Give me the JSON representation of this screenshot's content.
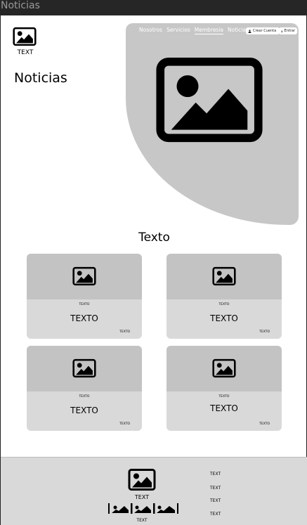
{
  "window": {
    "title": "Noticias"
  },
  "header": {
    "logo_text": "TEXT",
    "page_title": "Noticias",
    "nav": [
      {
        "label": "Nosotros"
      },
      {
        "label": "Servicios"
      },
      {
        "label": "Membresia",
        "active": true
      },
      {
        "label": "Noticias"
      }
    ],
    "create_account": "Crear Cuenta",
    "login": "Entrar"
  },
  "section": {
    "title": "Texto"
  },
  "cards": [
    {
      "small": "TEXTO",
      "title": "TEXTO",
      "corner": "TEXTO"
    },
    {
      "small": "TEXTO",
      "title": "TEXTO",
      "corner": "TEXTO"
    },
    {
      "small": "TEXTO",
      "title": "TEXTO",
      "corner": "TEXTO"
    },
    {
      "small": "TEXTO",
      "title": "TEXTO",
      "corner": "TEXTO"
    }
  ],
  "footer": {
    "logo_text": "TEXT",
    "strip_text": "TEXT",
    "links": [
      "TEXT",
      "TEXT",
      "TEXT",
      "TEXT"
    ]
  },
  "colors": {
    "hero": "#c7c7c7",
    "card_top": "#c3c3c3",
    "card_body": "#d9d9d9",
    "footer": "#d9d9d9",
    "titlebar": "#262626"
  },
  "icons": [
    "image-placeholder-icon",
    "user-icon"
  ]
}
